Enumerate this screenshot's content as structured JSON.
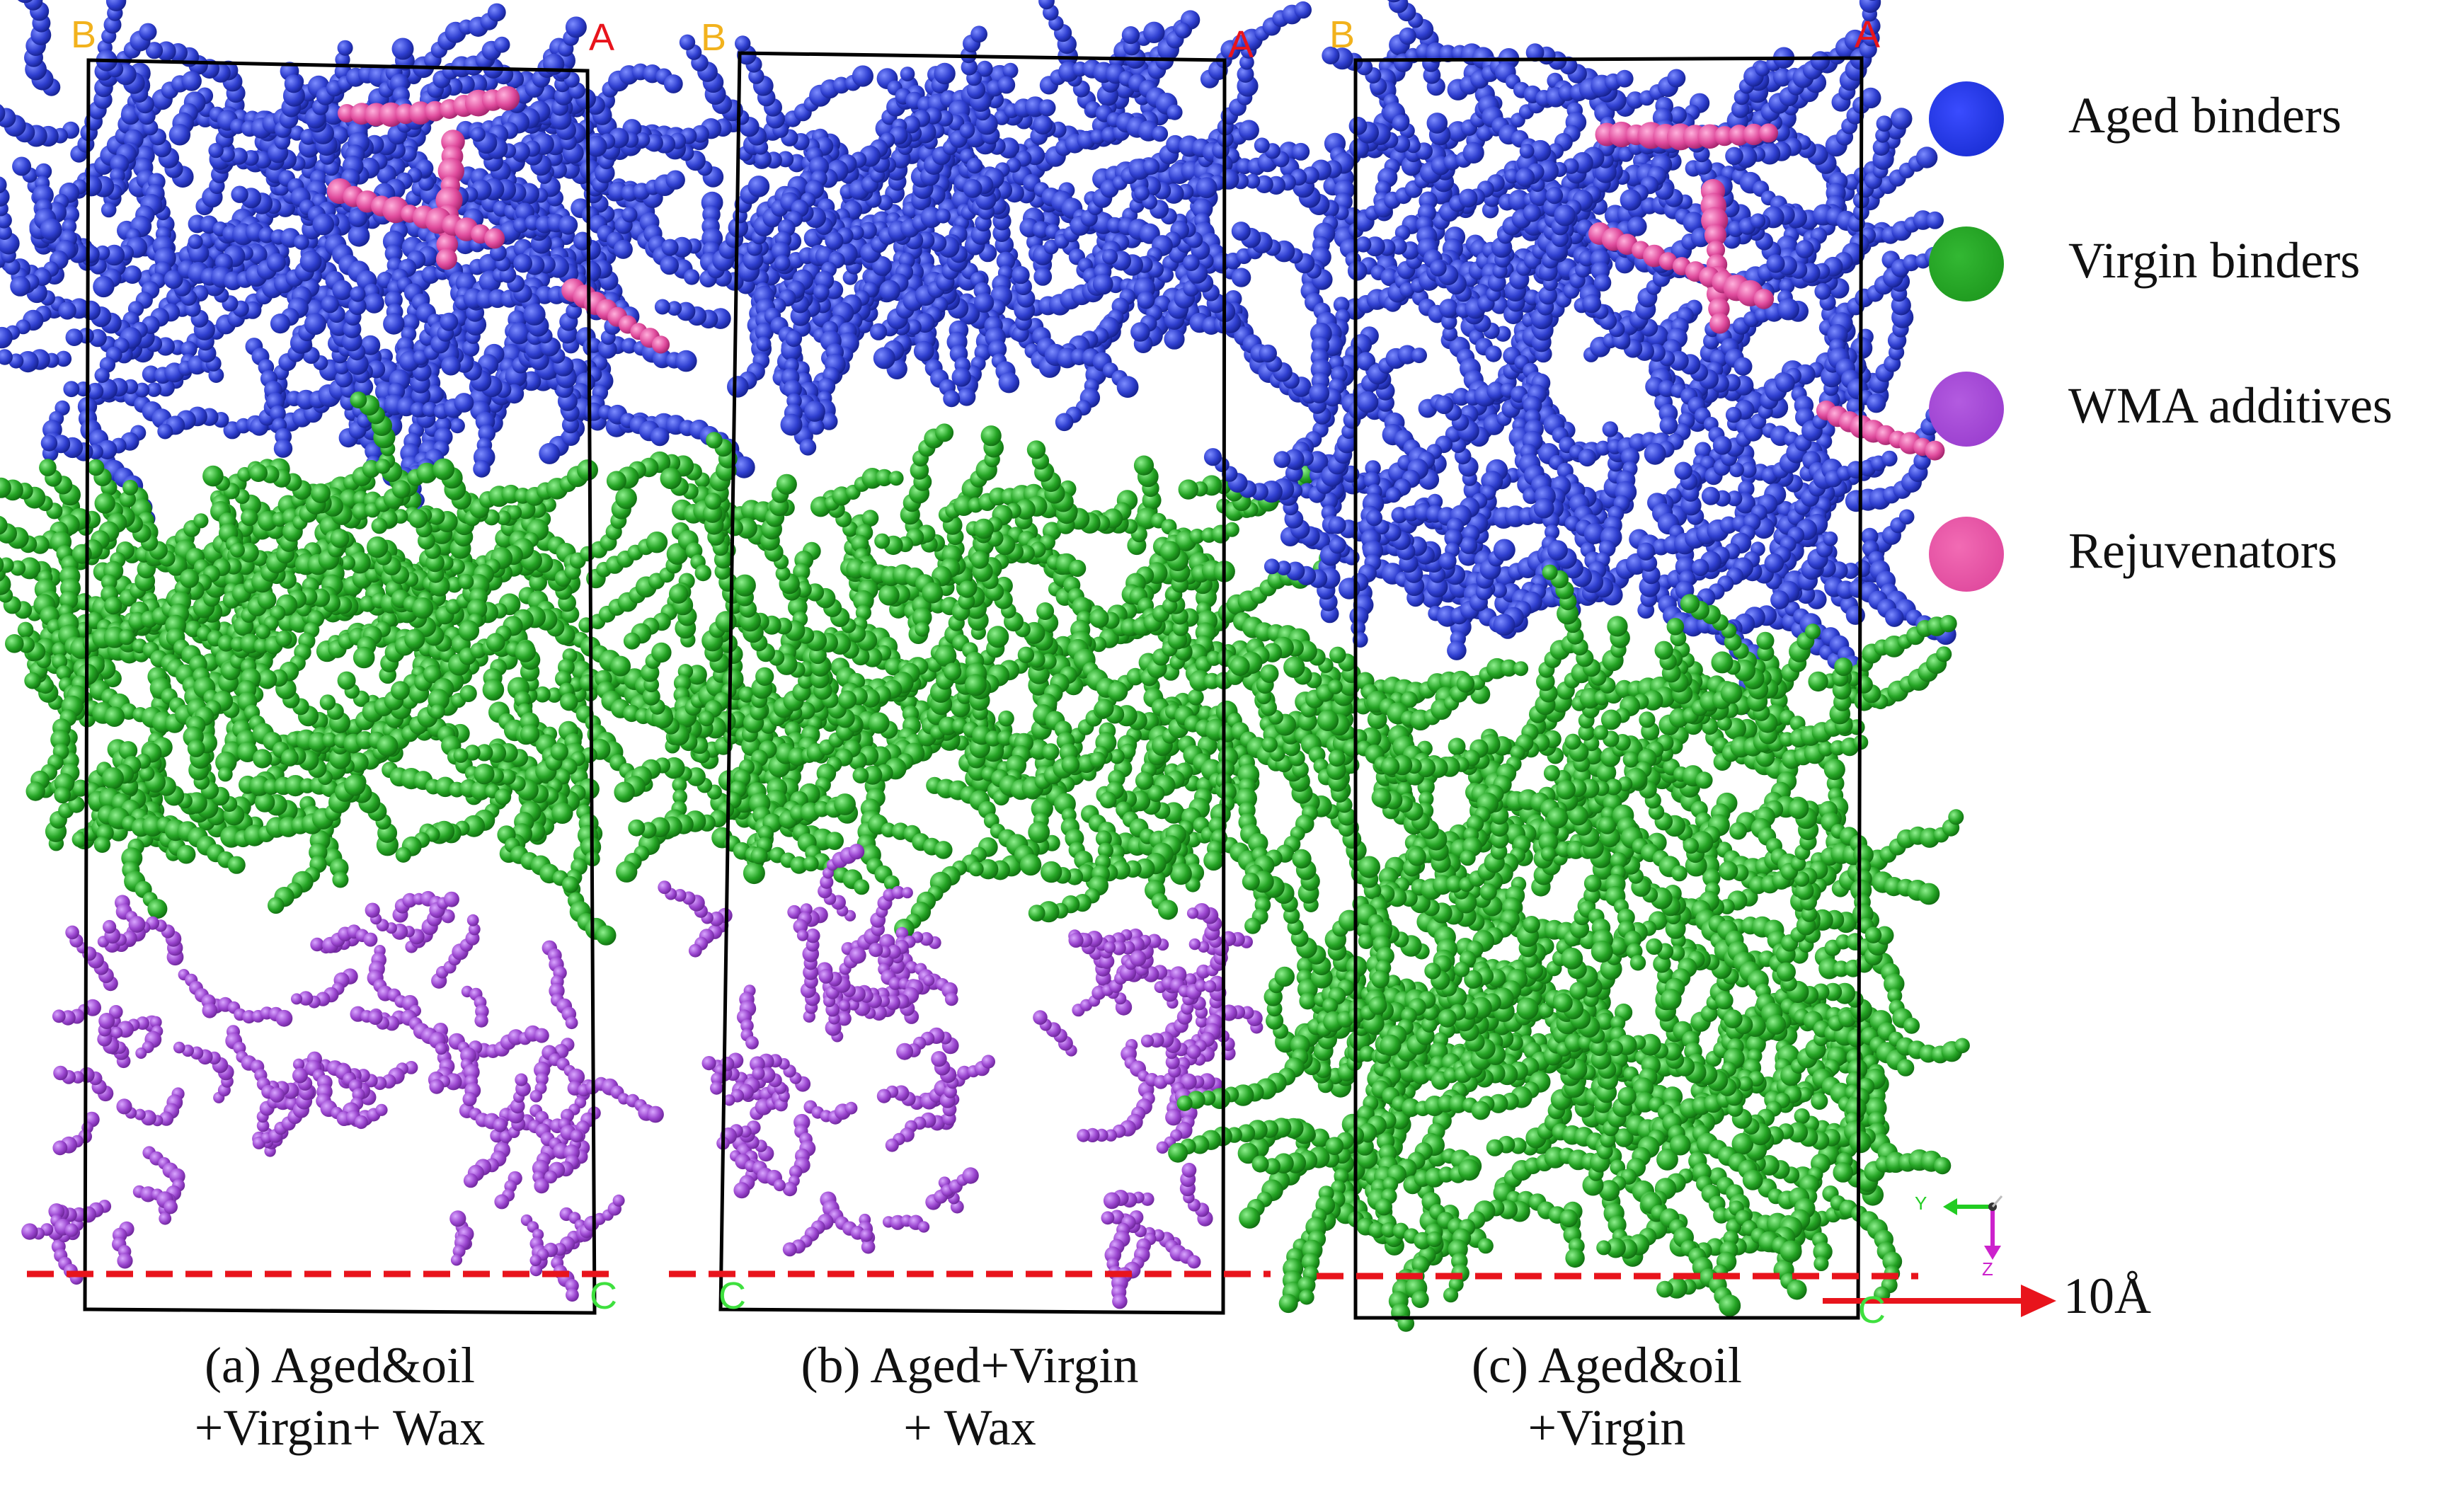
{
  "panels": [
    {
      "caption_line1": "(a) Aged&oil",
      "caption_line2": "+Virgin+ Wax",
      "corners": {
        "top_left": "B",
        "top_right": "A",
        "bottom_right": "C"
      }
    },
    {
      "caption_line1": "(b) Aged+Virgin",
      "caption_line2": "+ Wax",
      "corners": {
        "top_left": "B",
        "top_right": "A",
        "bottom_left": "C"
      }
    },
    {
      "caption_line1": "(c) Aged&oil",
      "caption_line2": "+Virgin",
      "corners": {
        "top_left": "B",
        "top_right": "A",
        "bottom_right": "C"
      }
    }
  ],
  "legend": [
    {
      "label": "Aged binders",
      "color": "#1b2fd6"
    },
    {
      "label": "Virgin binders",
      "color": "#1f9a1f"
    },
    {
      "label": "WMA additives",
      "color": "#9b3fcf"
    },
    {
      "label": "Rejuvenators",
      "color": "#e04a9e"
    }
  ],
  "scale_bar": {
    "label": "10Å",
    "color": "#e8141c"
  },
  "axes_triad": {
    "y_label": "Y",
    "z_label": "Z"
  },
  "colors": {
    "aged": "#2f3fd0",
    "virgin": "#27a527",
    "wax": "#9a45cf",
    "rejuvenator": "#df4a9c",
    "corner_b": "#f2b21d",
    "corner_a": "#e8141c",
    "corner_c": "#3ee03e",
    "dashed_line": "#e8141c"
  }
}
